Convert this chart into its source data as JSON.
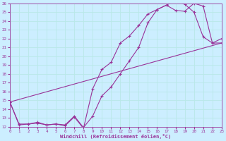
{
  "xlabel": "Windchill (Refroidissement éolien,°C)",
  "bg_color": "#cceeff",
  "grid_color": "#b8e8e8",
  "line_color": "#993399",
  "xlim": [
    0,
    23
  ],
  "ylim": [
    12,
    26
  ],
  "xticks": [
    0,
    1,
    2,
    3,
    4,
    5,
    6,
    7,
    8,
    9,
    10,
    11,
    12,
    13,
    14,
    15,
    16,
    17,
    18,
    19,
    20,
    21,
    22,
    23
  ],
  "yticks": [
    12,
    13,
    14,
    15,
    16,
    17,
    18,
    19,
    20,
    21,
    22,
    23,
    24,
    25,
    26
  ],
  "series1_x": [
    0,
    1,
    2,
    3,
    4,
    5,
    6,
    7,
    8,
    9,
    10,
    11,
    12,
    13,
    14,
    15,
    16,
    17,
    18,
    19,
    20,
    21,
    22,
    23
  ],
  "series1_y": [
    14.8,
    12.2,
    12.3,
    12.4,
    12.2,
    12.3,
    12.2,
    13.2,
    11.9,
    13.2,
    15.5,
    16.5,
    18.0,
    19.5,
    21.0,
    23.8,
    25.3,
    25.8,
    25.2,
    25.1,
    26.0,
    25.7,
    21.5,
    22.0
  ],
  "series2_x": [
    0,
    1,
    2,
    3,
    4,
    5,
    6,
    7,
    8,
    9,
    10,
    11,
    12,
    13,
    14,
    15,
    16,
    17,
    18,
    19,
    20,
    21,
    22,
    23
  ],
  "series2_y": [
    14.8,
    12.3,
    12.3,
    12.5,
    12.2,
    12.3,
    12.1,
    13.1,
    11.8,
    16.3,
    18.5,
    19.3,
    21.5,
    22.3,
    23.5,
    24.8,
    25.3,
    25.8,
    26.3,
    25.9,
    25.0,
    22.2,
    21.5,
    21.5
  ],
  "series3_x": [
    0,
    23
  ],
  "series3_y": [
    14.8,
    21.5
  ]
}
